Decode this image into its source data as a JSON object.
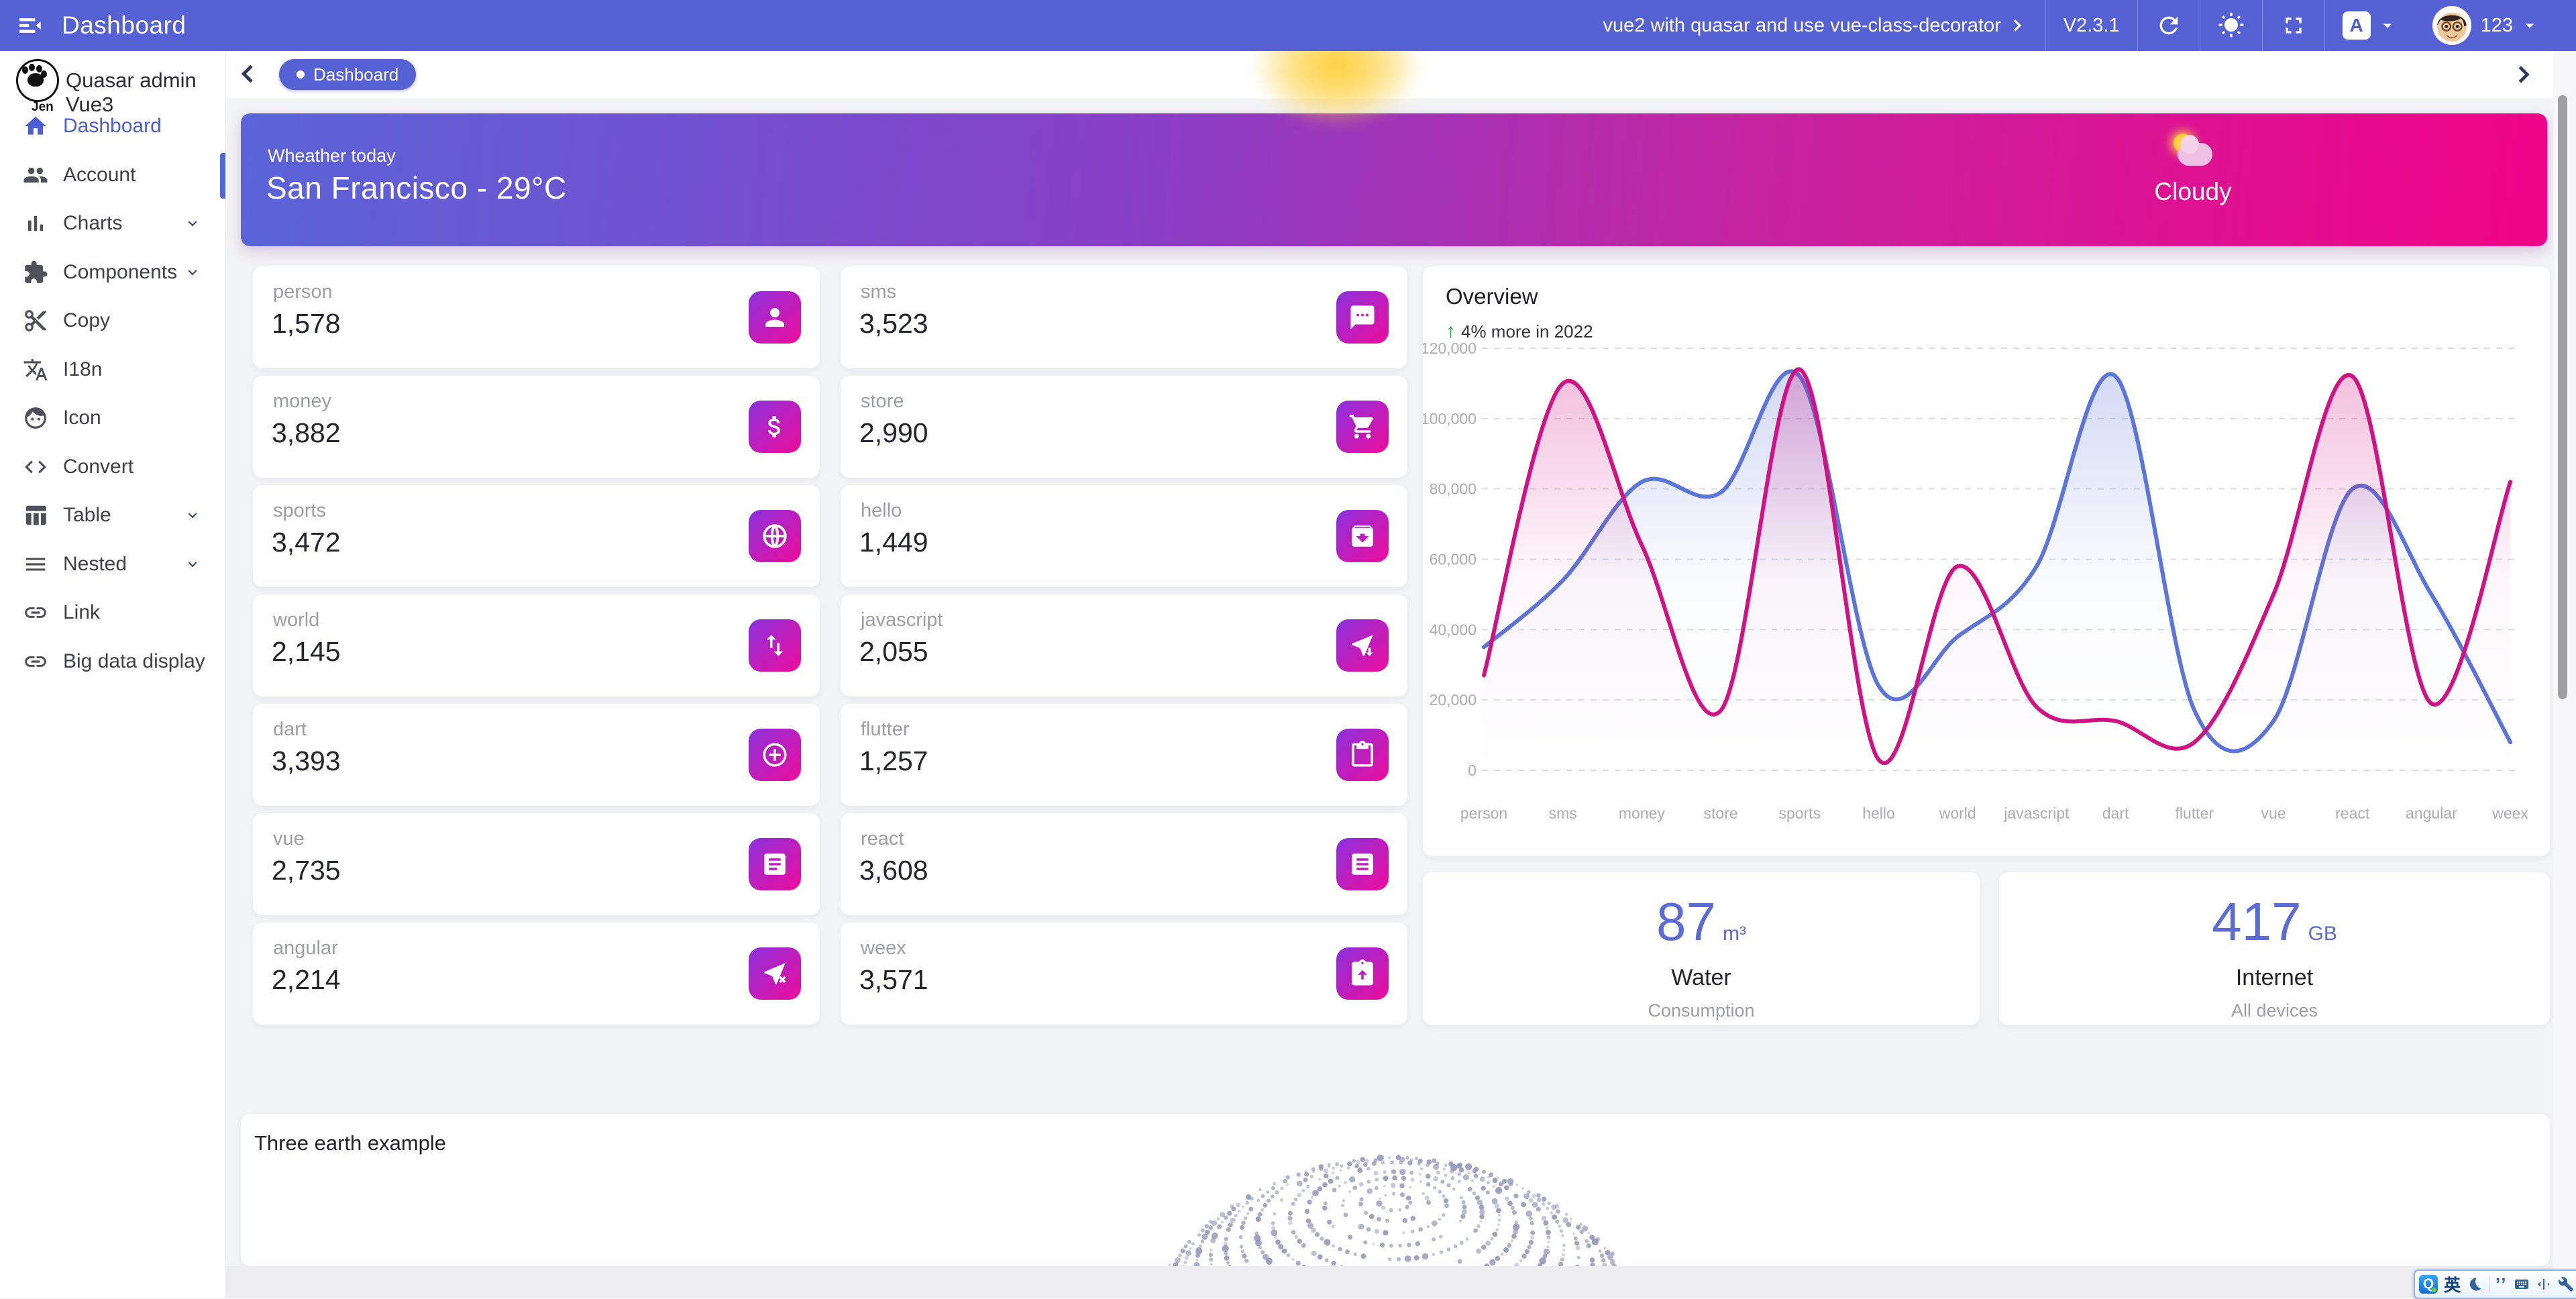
{
  "topbar": {
    "title": "Dashboard",
    "project_button": "vue2 with quasar and use vue-class-decorator",
    "version": "V2.3.1",
    "language_button": "A",
    "user_name": "123"
  },
  "sidebar": {
    "brand": "Quasar admin Vue3",
    "logo_text": "Jen",
    "items": [
      {
        "label": "Dashboard",
        "icon": "home-icon",
        "active": true,
        "expandable": false
      },
      {
        "label": "Account",
        "icon": "people-icon",
        "active": false,
        "expandable": false
      },
      {
        "label": "Charts",
        "icon": "bar-chart-icon",
        "active": false,
        "expandable": true
      },
      {
        "label": "Components",
        "icon": "puzzle-icon",
        "active": false,
        "expandable": true
      },
      {
        "label": "Copy",
        "icon": "scissors-icon",
        "active": false,
        "expandable": false
      },
      {
        "label": "I18n",
        "icon": "translate-icon",
        "active": false,
        "expandable": false
      },
      {
        "label": "Icon",
        "icon": "face-icon",
        "active": false,
        "expandable": false
      },
      {
        "label": "Convert",
        "icon": "code-icon",
        "active": false,
        "expandable": false
      },
      {
        "label": "Table",
        "icon": "table-icon",
        "active": false,
        "expandable": true
      },
      {
        "label": "Nested",
        "icon": "menu-icon",
        "active": false,
        "expandable": true
      },
      {
        "label": "Link",
        "icon": "link-icon",
        "active": false,
        "expandable": false
      },
      {
        "label": "Big data display",
        "icon": "link-icon",
        "active": false,
        "expandable": false
      }
    ]
  },
  "breadcrumb": {
    "chip": "Dashboard"
  },
  "banner": {
    "eyebrow": "Wheather today",
    "title": "San Francisco - 29°C",
    "condition": "Cloudy",
    "icon": "sun-behind-cloud-icon",
    "gradient": [
      "#5a64d8",
      "#f00387"
    ]
  },
  "stats": [
    {
      "label": "person",
      "value": "1,578",
      "icon": "person-icon"
    },
    {
      "label": "sms",
      "value": "3,523",
      "icon": "chat-icon"
    },
    {
      "label": "money",
      "value": "3,882",
      "icon": "dollar-icon"
    },
    {
      "label": "store",
      "value": "2,990",
      "icon": "cart-icon"
    },
    {
      "label": "sports",
      "value": "3,472",
      "icon": "basketball-icon"
    },
    {
      "label": "hello",
      "value": "1,449",
      "icon": "archive-icon"
    },
    {
      "label": "world",
      "value": "2,145",
      "icon": "swap-vertical-icon"
    },
    {
      "label": "javascript",
      "value": "2,055",
      "icon": "cursor-download-icon"
    },
    {
      "label": "dart",
      "value": "3,393",
      "icon": "add-circle-icon"
    },
    {
      "label": "flutter",
      "value": "1,257",
      "icon": "clipboard-icon"
    },
    {
      "label": "vue",
      "value": "2,735",
      "icon": "article-icon"
    },
    {
      "label": "react",
      "value": "3,608",
      "icon": "list-icon"
    },
    {
      "label": "angular",
      "value": "2,214",
      "icon": "cursor-x-icon"
    },
    {
      "label": "weex",
      "value": "3,571",
      "icon": "clipboard-arrow-icon"
    }
  ],
  "overview": {
    "title": "Overview",
    "trend": "4% more in 2022",
    "trend_arrow": "↑",
    "trend_color": "#21ba45",
    "chart_data": {
      "type": "line",
      "smooth": true,
      "legend": "none",
      "grid": "horizontal-dashed",
      "categories": [
        "person",
        "sms",
        "money",
        "store",
        "sports",
        "hello",
        "world",
        "javascript",
        "dart",
        "flutter",
        "vue",
        "react",
        "angular",
        "weex"
      ],
      "series": [
        {
          "name": "series-blue",
          "color": "#5b76d8",
          "values": [
            35000,
            54000,
            82000,
            79000,
            112000,
            24000,
            38000,
            58000,
            112000,
            17000,
            14000,
            80000,
            50000,
            8000
          ]
        },
        {
          "name": "series-pink",
          "color": "#d01384",
          "values": [
            27000,
            110000,
            64000,
            17000,
            114000,
            3000,
            58000,
            18000,
            14000,
            8000,
            50000,
            112000,
            19000,
            82000
          ]
        }
      ],
      "ylim": [
        0,
        120000
      ],
      "yticks": [
        "0",
        "20,000",
        "40,000",
        "60,000",
        "80,000",
        "100,000",
        "120,000"
      ]
    }
  },
  "usage_cards": [
    {
      "value": "87",
      "unit": "m³",
      "title": "Water",
      "subtitle": "Consumption"
    },
    {
      "value": "417",
      "unit": "GB",
      "title": "Internet",
      "subtitle": "All devices"
    }
  ],
  "earth": {
    "title": "Three earth example"
  },
  "ime_toolbar": {
    "logo": "Q",
    "mode": "英",
    "quotes": "’’",
    "icons": [
      "moon-icon",
      "quotes-icon",
      "keyboard-icon",
      "text-cursor-icon",
      "wrench-icon"
    ]
  },
  "colors": {
    "primary": "#5661d4",
    "banner_pink": "#f00387",
    "stat_icon_gradient": [
      "#8b31dd",
      "#ee0b9b"
    ],
    "usage_value_blue": "#5b6cd4",
    "globe_dot": "#8f94b6"
  }
}
